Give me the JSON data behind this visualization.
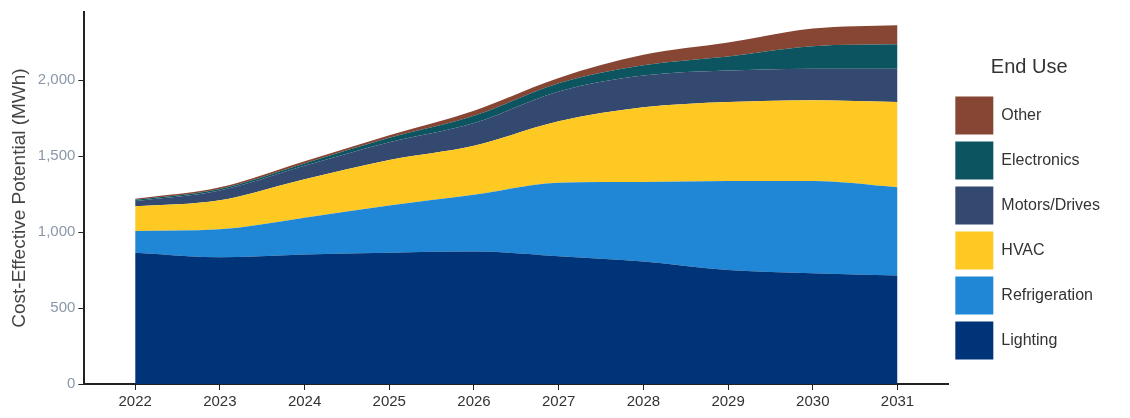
{
  "chart_data": {
    "type": "area",
    "stacked": true,
    "ylabel": "Cost-Effective Potential (MWh)",
    "legend_title": "End Use",
    "legend": "right",
    "grid": false,
    "x": [
      2022,
      2023,
      2024,
      2025,
      2026,
      2027,
      2028,
      2029,
      2030,
      2031
    ],
    "xlim": [
      2021.4,
      2031.6
    ],
    "xticks": [
      2022,
      2023,
      2024,
      2025,
      2026,
      2027,
      2028,
      2029,
      2030,
      2031
    ],
    "ylim": [
      0,
      2450
    ],
    "yticks": [
      0,
      500,
      {
        "value": 1000,
        "label": "1,000"
      },
      {
        "value": 1500,
        "label": "1,500"
      },
      {
        "value": 2000,
        "label": "2,000"
      }
    ],
    "series": [
      {
        "name": "Lighting",
        "color": "#003478",
        "values": [
          865,
          835,
          853,
          865,
          872,
          842,
          807,
          750,
          730,
          715
        ]
      },
      {
        "name": "Refrigeration",
        "color": "#1f87d6",
        "values": [
          143,
          184,
          242,
          311,
          374,
          484,
          523,
          587,
          607,
          581
        ]
      },
      {
        "name": "HVAC",
        "color": "#fdc922",
        "values": [
          162,
          192,
          254,
          300,
          323,
          404,
          492,
          520,
          531,
          561
        ]
      },
      {
        "name": "Motors/Drives",
        "color": "#34496f",
        "values": [
          35,
          64,
          88,
          116,
          150,
          196,
          209,
          207,
          208,
          219
        ]
      },
      {
        "name": "Electronics",
        "color": "#0b5460",
        "values": [
          8,
          10,
          16,
          29,
          47,
          55,
          68,
          93,
          149,
          161
        ]
      },
      {
        "name": "Other",
        "color": "#874533",
        "values": [
          7,
          11,
          14,
          17,
          34,
          35,
          69,
          92,
          116,
          126
        ]
      }
    ]
  }
}
